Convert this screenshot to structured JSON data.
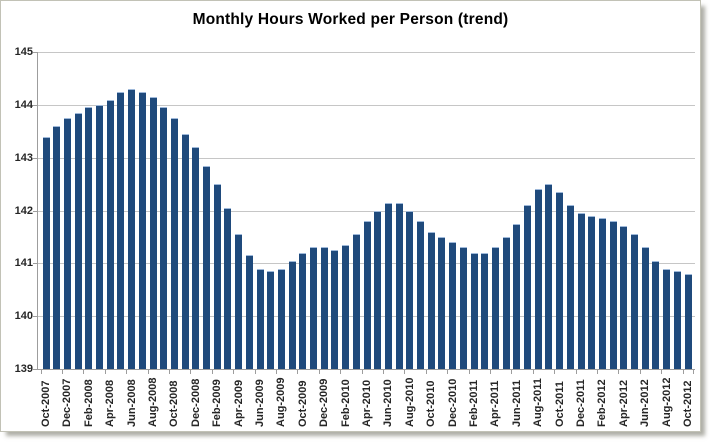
{
  "title": "Monthly Hours Worked per Person (trend)",
  "colors": {
    "bar_fill": "#1f4a7c",
    "bar_highlight": "#9fb9da",
    "gridline": "#c6c6c6",
    "axis_line": "#9d9d9d",
    "text": "#262626"
  },
  "chart_data": {
    "type": "bar",
    "title": "Monthly Hours Worked per Person (trend)",
    "xlabel": "",
    "ylabel": "",
    "ylim": [
      139,
      145
    ],
    "y_ticks": [
      139,
      140,
      141,
      142,
      143,
      144,
      145
    ],
    "grid": true,
    "legend": "none",
    "x": [
      "Oct-2007",
      "Nov-2007",
      "Dec-2007",
      "Jan-2008",
      "Feb-2008",
      "Mar-2008",
      "Apr-2008",
      "May-2008",
      "Jun-2008",
      "Jul-2008",
      "Aug-2008",
      "Sep-2008",
      "Oct-2008",
      "Nov-2008",
      "Dec-2008",
      "Jan-2009",
      "Feb-2009",
      "Mar-2009",
      "Apr-2009",
      "May-2009",
      "Jun-2009",
      "Jul-2009",
      "Aug-2009",
      "Sep-2009",
      "Oct-2009",
      "Nov-2009",
      "Dec-2009",
      "Jan-2010",
      "Feb-2010",
      "Mar-2010",
      "Apr-2010",
      "May-2010",
      "Jun-2010",
      "Jul-2010",
      "Aug-2010",
      "Sep-2010",
      "Oct-2010",
      "Nov-2010",
      "Dec-2010",
      "Jan-2011",
      "Feb-2011",
      "Mar-2011",
      "Apr-2011",
      "May-2011",
      "Jun-2011",
      "Jul-2011",
      "Aug-2011",
      "Sep-2011",
      "Oct-2011",
      "Nov-2011",
      "Dec-2011",
      "Jan-2012",
      "Feb-2012",
      "Mar-2012",
      "Apr-2012",
      "May-2012",
      "Jun-2012",
      "Jul-2012",
      "Aug-2012",
      "Sep-2012",
      "Oct-2012"
    ],
    "values": [
      143.4,
      143.6,
      143.75,
      143.85,
      143.95,
      144.0,
      144.1,
      144.25,
      144.3,
      144.25,
      144.15,
      143.95,
      143.75,
      143.45,
      143.2,
      142.85,
      142.5,
      142.05,
      141.55,
      141.15,
      140.9,
      140.85,
      140.9,
      141.05,
      141.2,
      141.3,
      141.3,
      141.25,
      141.35,
      141.55,
      141.8,
      142.0,
      142.15,
      142.15,
      142.0,
      141.8,
      141.6,
      141.5,
      141.4,
      141.3,
      141.2,
      141.2,
      141.3,
      141.5,
      141.75,
      142.1,
      142.4,
      142.5,
      142.35,
      142.1,
      141.95,
      141.9,
      141.85,
      141.8,
      141.7,
      141.55,
      141.3,
      141.05,
      140.9,
      140.85,
      140.8
    ],
    "x_tick_labels": [
      "Oct-2007",
      "Dec-2007",
      "Feb-2008",
      "Apr-2008",
      "Jun-2008",
      "Aug-2008",
      "Oct-2008",
      "Dec-2008",
      "Feb-2009",
      "Apr-2009",
      "Jun-2009",
      "Aug-2009",
      "Oct-2009",
      "Dec-2009",
      "Feb-2010",
      "Apr-2010",
      "Jun-2010",
      "Aug-2010",
      "Oct-2010",
      "Dec-2010",
      "Feb-2011",
      "Apr-2011",
      "Jun-2011",
      "Aug-2011",
      "Oct-2011",
      "Dec-2011",
      "Feb-2012",
      "Apr-2012",
      "Jun-2012",
      "Aug-2012",
      "Oct-2012"
    ]
  }
}
